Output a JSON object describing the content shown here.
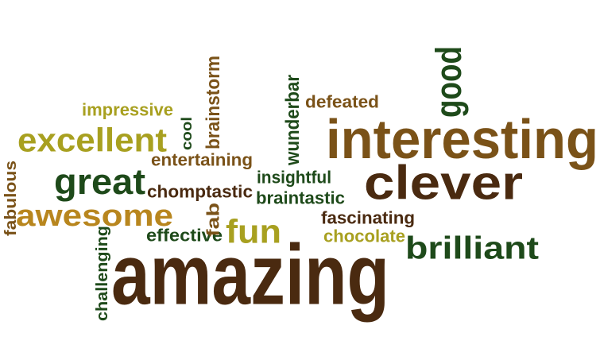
{
  "word_cloud": {
    "words": [
      {
        "key": "amazing",
        "text": "amazing",
        "color": "#4a2a10"
      },
      {
        "key": "interesting",
        "text": "interesting",
        "color": "#7a5218"
      },
      {
        "key": "clever",
        "text": "clever",
        "color": "#4a2a10"
      },
      {
        "key": "excellent",
        "text": "excellent",
        "color": "#a8a020"
      },
      {
        "key": "awesome",
        "text": "awesome",
        "color": "#b8861e"
      },
      {
        "key": "great",
        "text": "great",
        "color": "#1e4a1a"
      },
      {
        "key": "brilliant",
        "text": "brilliant",
        "color": "#1e4a1a"
      },
      {
        "key": "good",
        "text": "good",
        "color": "#1e4a1a"
      },
      {
        "key": "fun",
        "text": "fun",
        "color": "#a8a020"
      },
      {
        "key": "impressive",
        "text": "impressive",
        "color": "#a8a020"
      },
      {
        "key": "entertaining",
        "text": "entertaining",
        "color": "#7a5218"
      },
      {
        "key": "chomptastic",
        "text": "chomptastic",
        "color": "#4a2a10"
      },
      {
        "key": "effective",
        "text": "effective",
        "color": "#1e4a1a"
      },
      {
        "key": "insightful",
        "text": "insightful",
        "color": "#1e4a1a"
      },
      {
        "key": "braintastic",
        "text": "braintastic",
        "color": "#1e4a1a"
      },
      {
        "key": "fascinating",
        "text": "fascinating",
        "color": "#4a2a10"
      },
      {
        "key": "chocolate",
        "text": "chocolate",
        "color": "#a8a020"
      },
      {
        "key": "defeated",
        "text": "defeated",
        "color": "#7a5218"
      },
      {
        "key": "wunderbar",
        "text": "wunderbar",
        "color": "#1e4a1a"
      },
      {
        "key": "brainstorm",
        "text": "brainstorm",
        "color": "#7a5218"
      },
      {
        "key": "cool",
        "text": "cool",
        "color": "#1e4a1a"
      },
      {
        "key": "fab",
        "text": "fab",
        "color": "#7a5218"
      },
      {
        "key": "fabulous",
        "text": "fabulous",
        "color": "#7a5218"
      },
      {
        "key": "challenging",
        "text": "challenging",
        "color": "#1e4a1a"
      }
    ]
  }
}
